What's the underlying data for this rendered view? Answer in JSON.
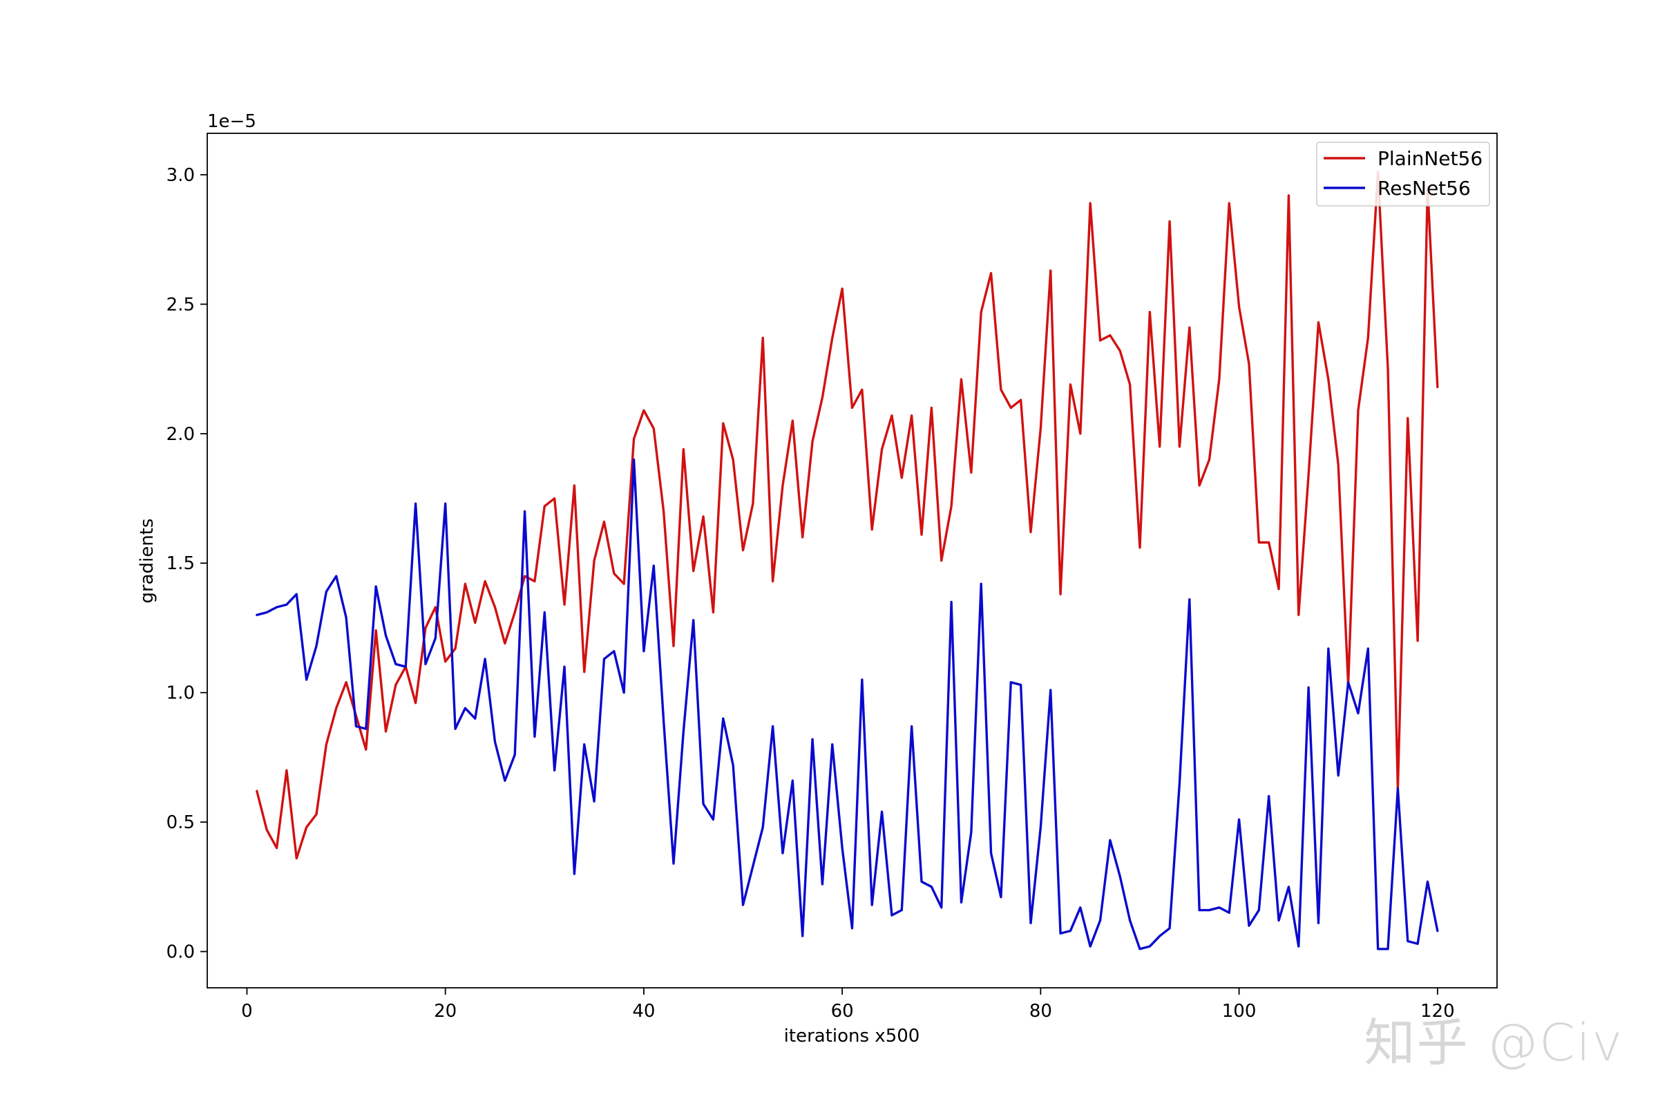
{
  "chart_data": {
    "type": "line",
    "title": "",
    "xlabel": "iterations x500",
    "ylabel": "gradients",
    "y_offset_text": "1e−5",
    "xlim": [
      -4,
      126
    ],
    "ylim": [
      -0.14,
      3.16
    ],
    "xticks": [
      0,
      20,
      40,
      60,
      80,
      100,
      120
    ],
    "xtick_labels": [
      "0",
      "20",
      "40",
      "60",
      "80",
      "100",
      "120"
    ],
    "yticks": [
      0.0,
      0.5,
      1.0,
      1.5,
      2.0,
      2.5,
      3.0
    ],
    "ytick_labels": [
      "0.0",
      "0.5",
      "1.0",
      "1.5",
      "2.0",
      "2.5",
      "3.0"
    ],
    "grid": false,
    "legend_position": "top-right",
    "series": [
      {
        "name": "PlainNet56",
        "color": "#d11111",
        "x": [
          1,
          2,
          3,
          4,
          5,
          6,
          7,
          8,
          9,
          10,
          11,
          12,
          13,
          14,
          15,
          16,
          17,
          18,
          19,
          20,
          21,
          22,
          23,
          24,
          25,
          26,
          27,
          28,
          29,
          30,
          31,
          32,
          33,
          34,
          35,
          36,
          37,
          38,
          39,
          40,
          41,
          42,
          43,
          44,
          45,
          46,
          47,
          48,
          49,
          50,
          51,
          52,
          53,
          54,
          55,
          56,
          57,
          58,
          59,
          60,
          61,
          62,
          63,
          64,
          65,
          66,
          67,
          68,
          69,
          70,
          71,
          72,
          73,
          74,
          75,
          76,
          77,
          78,
          79,
          80,
          81,
          82,
          83,
          84,
          85,
          86,
          87,
          88,
          89,
          90,
          91,
          92,
          93,
          94,
          95,
          96,
          97,
          98,
          99,
          100,
          101,
          102,
          103,
          104,
          105,
          106,
          107,
          108,
          109,
          110,
          111,
          112,
          113,
          114,
          115,
          116,
          117,
          118,
          119,
          120
        ],
        "values": [
          0.62,
          0.47,
          0.4,
          0.7,
          0.36,
          0.48,
          0.53,
          0.8,
          0.94,
          1.04,
          0.91,
          0.78,
          1.24,
          0.85,
          1.03,
          1.1,
          0.96,
          1.25,
          1.33,
          1.12,
          1.17,
          1.42,
          1.27,
          1.43,
          1.33,
          1.19,
          1.31,
          1.45,
          1.43,
          1.72,
          1.75,
          1.34,
          1.8,
          1.08,
          1.51,
          1.66,
          1.46,
          1.42,
          1.98,
          2.09,
          2.02,
          1.7,
          1.18,
          1.94,
          1.47,
          1.68,
          1.31,
          2.04,
          1.9,
          1.55,
          1.73,
          2.37,
          1.43,
          1.8,
          2.05,
          1.6,
          1.97,
          2.14,
          2.37,
          2.56,
          2.1,
          2.17,
          1.63,
          1.94,
          2.07,
          1.83,
          2.07,
          1.61,
          2.1,
          1.51,
          1.72,
          2.21,
          1.85,
          2.47,
          2.62,
          2.17,
          2.1,
          2.13,
          1.62,
          2.02,
          2.63,
          1.38,
          2.19,
          2.0,
          2.89,
          2.36,
          2.38,
          2.32,
          2.19,
          1.56,
          2.47,
          1.95,
          2.82,
          1.95,
          2.41,
          1.8,
          1.9,
          2.21,
          2.89,
          2.49,
          2.27,
          1.58,
          1.58,
          1.4,
          2.92,
          1.3,
          1.84,
          2.43,
          2.21,
          1.88,
          1.03,
          2.09,
          2.37,
          3.01,
          2.25,
          0.63,
          2.06,
          1.2,
          2.95,
          2.18
        ]
      },
      {
        "name": "ResNet56",
        "color": "#0a0acd",
        "x": [
          1,
          2,
          3,
          4,
          5,
          6,
          7,
          8,
          9,
          10,
          11,
          12,
          13,
          14,
          15,
          16,
          17,
          18,
          19,
          20,
          21,
          22,
          23,
          24,
          25,
          26,
          27,
          28,
          29,
          30,
          31,
          32,
          33,
          34,
          35,
          36,
          37,
          38,
          39,
          40,
          41,
          42,
          43,
          44,
          45,
          46,
          47,
          48,
          49,
          50,
          51,
          52,
          53,
          54,
          55,
          56,
          57,
          58,
          59,
          60,
          61,
          62,
          63,
          64,
          65,
          66,
          67,
          68,
          69,
          70,
          71,
          72,
          73,
          74,
          75,
          76,
          77,
          78,
          79,
          80,
          81,
          82,
          83,
          84,
          85,
          86,
          87,
          88,
          89,
          90,
          91,
          92,
          93,
          94,
          95,
          96,
          97,
          98,
          99,
          100,
          101,
          102,
          103,
          104,
          105,
          106,
          107,
          108,
          109,
          110,
          111,
          112,
          113,
          114,
          115,
          116,
          117,
          118,
          119,
          120
        ],
        "values": [
          1.3,
          1.31,
          1.33,
          1.34,
          1.38,
          1.05,
          1.18,
          1.39,
          1.45,
          1.29,
          0.87,
          0.86,
          1.41,
          1.22,
          1.11,
          1.1,
          1.73,
          1.11,
          1.21,
          1.73,
          0.86,
          0.94,
          0.9,
          1.13,
          0.81,
          0.66,
          0.76,
          1.7,
          0.83,
          1.31,
          0.7,
          1.1,
          0.3,
          0.8,
          0.58,
          1.13,
          1.16,
          1.0,
          1.9,
          1.16,
          1.49,
          0.89,
          0.34,
          0.85,
          1.28,
          0.57,
          0.51,
          0.9,
          0.72,
          0.18,
          0.33,
          0.48,
          0.87,
          0.38,
          0.66,
          0.06,
          0.82,
          0.26,
          0.8,
          0.4,
          0.09,
          1.05,
          0.18,
          0.54,
          0.14,
          0.16,
          0.87,
          0.27,
          0.25,
          0.17,
          1.35,
          0.19,
          0.46,
          1.42,
          0.38,
          0.21,
          1.04,
          1.03,
          0.11,
          0.48,
          1.01,
          0.07,
          0.08,
          0.17,
          0.02,
          0.12,
          0.43,
          0.29,
          0.12,
          0.01,
          0.02,
          0.06,
          0.09,
          0.65,
          1.36,
          0.16,
          0.16,
          0.17,
          0.15,
          0.51,
          0.1,
          0.16,
          0.6,
          0.12,
          0.25,
          0.02,
          1.02,
          0.11,
          1.17,
          0.68,
          1.04,
          0.92,
          1.17,
          0.01,
          0.01,
          0.63,
          0.04,
          0.03,
          0.27,
          0.08
        ]
      }
    ]
  },
  "watermark": "知乎 @Civ"
}
